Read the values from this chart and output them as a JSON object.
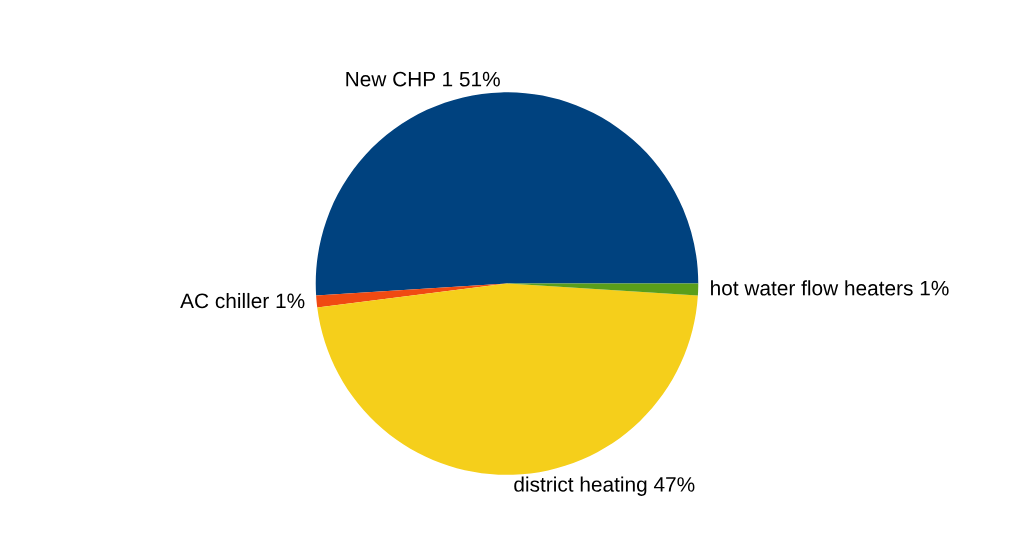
{
  "chart_data": {
    "type": "pie",
    "categories": [
      "New CHP 1",
      "AC chiller",
      "district heating",
      "hot water flow heaters"
    ],
    "values": [
      51,
      1,
      47,
      1
    ],
    "value_labels": [
      "51%",
      "1%",
      "47%",
      "1%"
    ],
    "colors": [
      "#00427f",
      "#f04a12",
      "#f5cf1b",
      "#5a9e1a"
    ]
  }
}
